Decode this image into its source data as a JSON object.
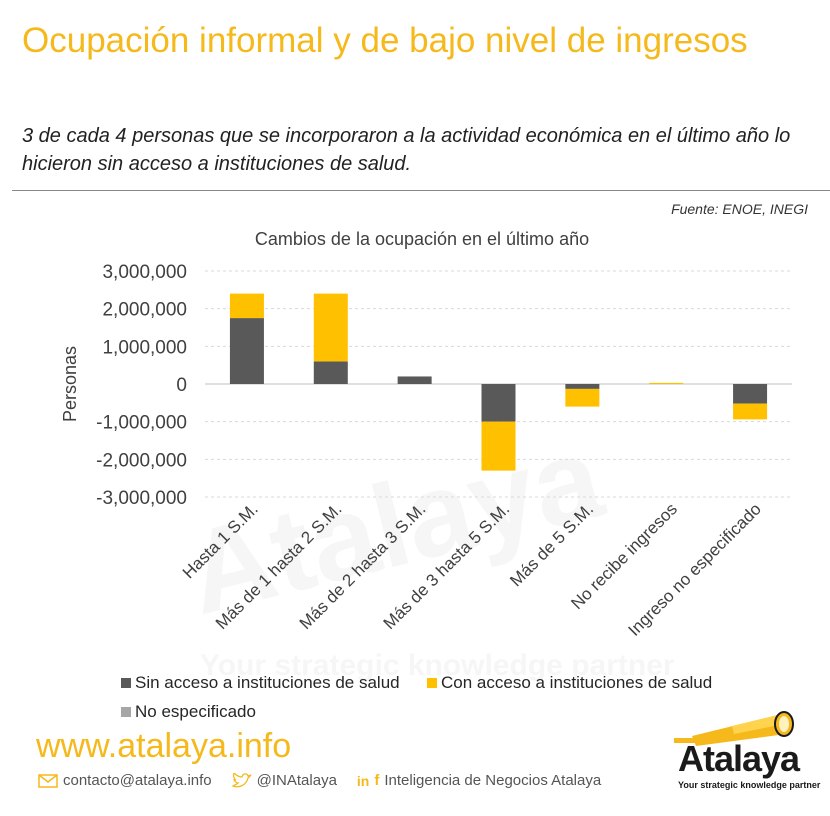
{
  "header": {
    "title": "Ocupación informal y de bajo nivel de ingresos",
    "subtitle": "3 de cada 4 personas que se incorporaron a la actividad económica en el último año lo hicieron sin acceso a instituciones de salud.",
    "source": "Fuente: ENOE, INEGI"
  },
  "chart_data": {
    "type": "bar",
    "stacked": true,
    "title": "Cambios de la ocupación en el último año",
    "ylabel": "Personas",
    "xlabel": "",
    "ylim": [
      -3000000,
      3000000
    ],
    "yticks": [
      3000000,
      2000000,
      1000000,
      0,
      -1000000,
      -2000000,
      -3000000
    ],
    "ytick_labels": [
      "3,000,000",
      "2,000,000",
      "1,000,000",
      "0",
      "-1,000,000",
      "-2,000,000",
      "-3,000,000"
    ],
    "grid": true,
    "legend_position": "bottom",
    "categories": [
      "Hasta 1 S.M.",
      "Más de 1 hasta 2 S.M.",
      "Más de 2 hasta 3 S.M.",
      "Más de 3 hasta 5 S.M.",
      "Más de 5 S.M.",
      "No recibe ingresos",
      "Ingreso no especificado"
    ],
    "series": [
      {
        "name": "Sin acceso a instituciones de salud",
        "color": "#595959",
        "values": [
          1750000,
          600000,
          200000,
          -1000000,
          -130000,
          0,
          -520000
        ]
      },
      {
        "name": "Con acceso a instituciones de salud",
        "color": "#ffc000",
        "values": [
          650000,
          1800000,
          0,
          -1300000,
          -470000,
          30000,
          -420000
        ]
      },
      {
        "name": "No  especificado",
        "color": "#a6a6a6",
        "values": [
          0,
          0,
          0,
          0,
          0,
          0,
          0
        ]
      }
    ]
  },
  "footer": {
    "url": "www.atalaya.info",
    "email": "contacto@atalaya.info",
    "twitter": "@INAtalaya",
    "linkedin_facebook": "Inteligencia de Negocios Atalaya",
    "logo_word": "Atalaya",
    "logo_tagline": "Your strategic knowledge partner",
    "accent_color": "#f5b91c"
  }
}
